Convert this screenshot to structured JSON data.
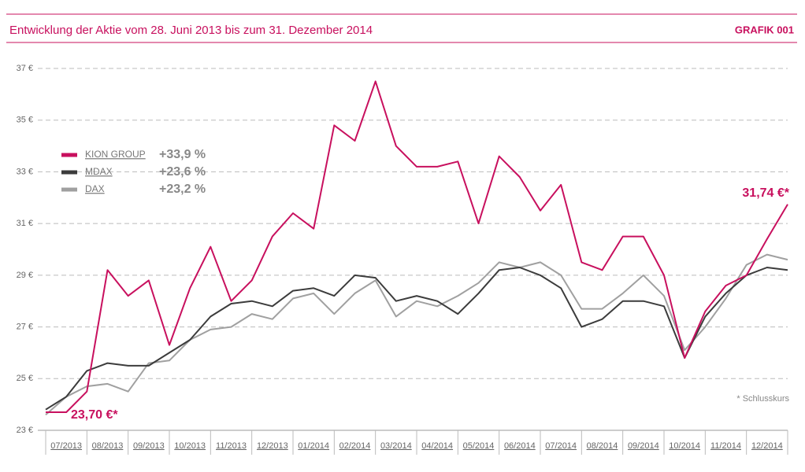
{
  "header": {
    "title": "Entwicklung der Aktie vom 28. Juni 2013 bis zum 31. Dezember 2014",
    "label": "GRAFIK 001"
  },
  "chart_data": {
    "type": "line",
    "xlim": [
      0,
      18
    ],
    "xticks": [
      {
        "value": 0.5,
        "label": "07/2013"
      },
      {
        "value": 1.5,
        "label": "08/2013"
      },
      {
        "value": 2.5,
        "label": "09/2013"
      },
      {
        "value": 3.5,
        "label": "10/2013"
      },
      {
        "value": 4.5,
        "label": "11/2013"
      },
      {
        "value": 5.5,
        "label": "12/2013"
      },
      {
        "value": 6.5,
        "label": "01/2014"
      },
      {
        "value": 7.5,
        "label": "02/2014"
      },
      {
        "value": 8.5,
        "label": "03/2014"
      },
      {
        "value": 9.5,
        "label": "04/2014"
      },
      {
        "value": 10.5,
        "label": "05/2014"
      },
      {
        "value": 11.5,
        "label": "06/2014"
      },
      {
        "value": 12.5,
        "label": "07/2014"
      },
      {
        "value": 13.5,
        "label": "08/2014"
      },
      {
        "value": 14.5,
        "label": "09/2014"
      },
      {
        "value": 15.5,
        "label": "10/2014"
      },
      {
        "value": 16.5,
        "label": "11/2014"
      },
      {
        "value": 17.5,
        "label": "12/2014"
      }
    ],
    "x": [
      0,
      0.5,
      1,
      1.5,
      2,
      2.5,
      3,
      3.5,
      4,
      4.5,
      5,
      5.5,
      6,
      6.5,
      7,
      7.5,
      8,
      8.5,
      9,
      9.5,
      10,
      10.5,
      11,
      11.5,
      12,
      12.5,
      13,
      13.5,
      14,
      14.5,
      15,
      15.5,
      16,
      16.5,
      17,
      17.5,
      18
    ],
    "ylim": [
      23,
      37
    ],
    "yticks": [
      {
        "value": 23,
        "label": "23 €"
      },
      {
        "value": 25,
        "label": "25 €"
      },
      {
        "value": 27,
        "label": "27 €"
      },
      {
        "value": 29,
        "label": "29 €"
      },
      {
        "value": 31,
        "label": "31 €"
      },
      {
        "value": 33,
        "label": "33 €"
      },
      {
        "value": 35,
        "label": "35 €"
      },
      {
        "value": 37,
        "label": "37 €"
      }
    ],
    "grid": true,
    "series": [
      {
        "name": "KION GROUP",
        "change": "+33,9 %",
        "color": "#c8105e",
        "values": [
          23.7,
          23.7,
          24.5,
          29.2,
          28.2,
          28.8,
          26.3,
          28.5,
          30.1,
          28.0,
          28.8,
          30.5,
          31.4,
          30.8,
          34.8,
          34.2,
          36.5,
          34.0,
          33.2,
          33.2,
          33.4,
          31.0,
          33.6,
          32.8,
          31.5,
          32.5,
          29.5,
          29.2,
          30.5,
          30.5,
          29.0,
          25.8,
          27.6,
          28.6,
          29.0,
          30.4,
          31.74
        ]
      },
      {
        "name": "MDAX",
        "change": "+23,6 %",
        "color": "#3c3c3c",
        "values": [
          23.8,
          24.3,
          25.3,
          25.6,
          25.5,
          25.5,
          26.0,
          26.5,
          27.4,
          27.9,
          28.0,
          27.8,
          28.4,
          28.5,
          28.2,
          29.0,
          28.9,
          28.0,
          28.2,
          28.0,
          27.5,
          28.3,
          29.2,
          29.3,
          29.0,
          28.5,
          27.0,
          27.3,
          28.0,
          28.0,
          27.8,
          25.8,
          27.4,
          28.3,
          29.0,
          29.3,
          29.2
        ]
      },
      {
        "name": "DAX",
        "change": "+23,2 %",
        "color": "#a0a0a0",
        "values": [
          23.6,
          24.3,
          24.7,
          24.8,
          24.5,
          25.6,
          25.7,
          26.5,
          26.9,
          27.0,
          27.5,
          27.3,
          28.1,
          28.3,
          27.5,
          28.3,
          28.8,
          27.4,
          28.0,
          27.8,
          28.2,
          28.7,
          29.5,
          29.3,
          29.5,
          29.0,
          27.7,
          27.7,
          28.3,
          29.0,
          28.2,
          26.1,
          27.0,
          28.1,
          29.4,
          29.8,
          29.6
        ]
      }
    ],
    "annotations": {
      "start": "23,70 €*",
      "end": "31,74 €*",
      "note": "* Schlusskurs"
    }
  }
}
